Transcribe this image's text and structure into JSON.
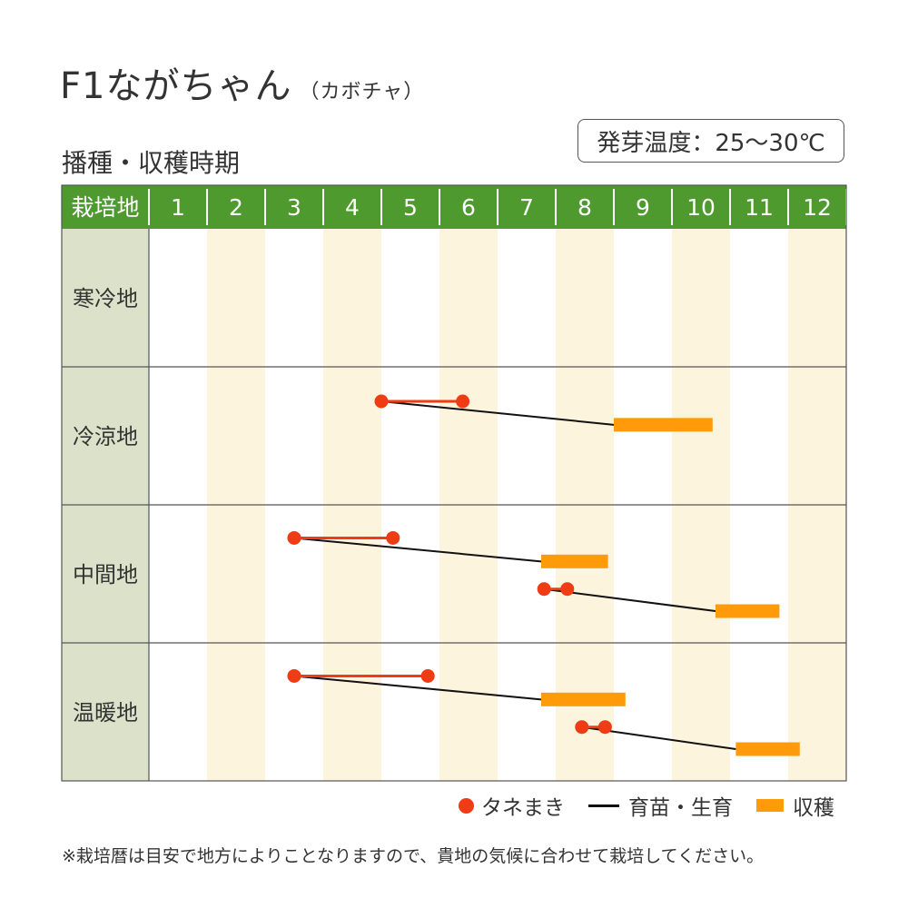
{
  "header": {
    "title": "F1ながちゃん",
    "subtitle": "（カボチャ）",
    "section_title": "播種・収穫時期",
    "germination_temp": "発芽温度：25～30℃"
  },
  "legend": {
    "sowing": "タネまき",
    "growing": "育苗・生育",
    "harvest": "収穫"
  },
  "note": "※栽培暦は目安で地方によりことなりますので、貴地の気候に合わせて栽培してください。",
  "colors": {
    "header_green": "#4e9a2e",
    "region_column": "#dbe2c9",
    "stripe": "#fcf4dc",
    "sowing": "#f03c14",
    "harvest": "#ff9a0a",
    "growing_line": "#111111"
  },
  "chart_data": {
    "type": "gantt",
    "corner_label": "栽培地",
    "months": [
      "1",
      "2",
      "3",
      "4",
      "5",
      "6",
      "7",
      "8",
      "9",
      "10",
      "11",
      "12"
    ],
    "regions": [
      {
        "name": "寒冷地",
        "schedules": []
      },
      {
        "name": "冷涼地",
        "schedules": [
          {
            "sowing": [
              4.0,
              5.4
            ],
            "harvest": [
              8.0,
              9.7
            ]
          }
        ]
      },
      {
        "name": "中間地",
        "schedules": [
          {
            "sowing": [
              2.5,
              4.2
            ],
            "harvest": [
              6.75,
              7.9
            ]
          },
          {
            "sowing": [
              6.8,
              7.2
            ],
            "harvest": [
              9.75,
              10.85
            ]
          }
        ]
      },
      {
        "name": "温暖地",
        "schedules": [
          {
            "sowing": [
              2.5,
              4.8
            ],
            "harvest": [
              6.75,
              8.2
            ]
          },
          {
            "sowing": [
              7.45,
              7.85
            ],
            "harvest": [
              10.1,
              11.2
            ]
          }
        ]
      }
    ]
  }
}
